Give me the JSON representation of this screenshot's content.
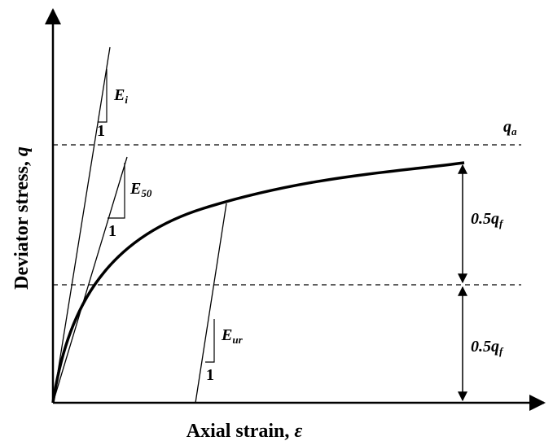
{
  "y_axis_label": {
    "text": "Deviator stress, ",
    "symbol": "q"
  },
  "x_axis_label": {
    "text": "Axial strain, ",
    "symbol": "ε"
  },
  "initial_modulus": {
    "symbol": "E",
    "subscript": "i",
    "slope": "1"
  },
  "secant_modulus": {
    "symbol": "E",
    "subscript": "50",
    "slope": "1"
  },
  "unload_reload_modulus": {
    "symbol": "E",
    "subscript": "ur",
    "slope": "1"
  },
  "asymptote": {
    "symbol": "q",
    "subscript": "a"
  },
  "upper_half": {
    "text": "0.5q",
    "subscript": "f"
  },
  "lower_half": {
    "text": "0.5q",
    "subscript": "f"
  }
}
